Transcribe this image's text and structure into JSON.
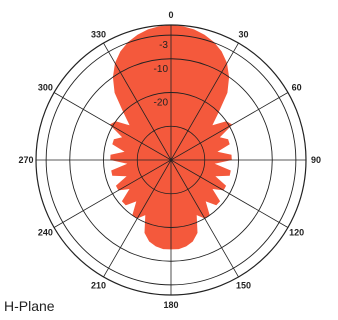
{
  "chart_data": {
    "type": "polar",
    "title": "",
    "plane_label": "H-Plane",
    "angle_labels": [
      "0",
      "30",
      "60",
      "90",
      "120",
      "150",
      "180",
      "210",
      "240",
      "270",
      "300",
      "330"
    ],
    "angle_values": [
      0,
      30,
      60,
      90,
      120,
      150,
      180,
      210,
      240,
      270,
      300,
      330
    ],
    "ring_labels": [
      "-3",
      "-10",
      "-20"
    ],
    "ring_values_db": [
      -3,
      -10,
      -20
    ],
    "r_range_db": [
      -40,
      0
    ],
    "series": [
      {
        "color": "#f4593c",
        "angles": [
          0,
          5,
          10,
          15,
          20,
          25,
          30,
          35,
          40,
          45,
          50,
          55,
          60,
          65,
          70,
          75,
          80,
          85,
          90,
          95,
          100,
          105,
          110,
          115,
          120,
          125,
          130,
          135,
          140,
          145,
          150,
          155,
          160,
          165,
          170,
          175,
          180
        ],
        "gain_db": [
          0,
          -0.2,
          -0.7,
          -1.6,
          -2.8,
          -4.5,
          -6.8,
          -10,
          -14,
          -20,
          -24,
          -20,
          -19,
          -24,
          -22,
          -22,
          -26,
          -22,
          -22,
          -27,
          -22,
          -22,
          -26,
          -22,
          -22,
          -25,
          -21,
          -21,
          -24,
          -20,
          -20,
          -22,
          -17,
          -15,
          -14,
          -13.5,
          -13.5
        ]
      }
    ],
    "grid": true
  }
}
